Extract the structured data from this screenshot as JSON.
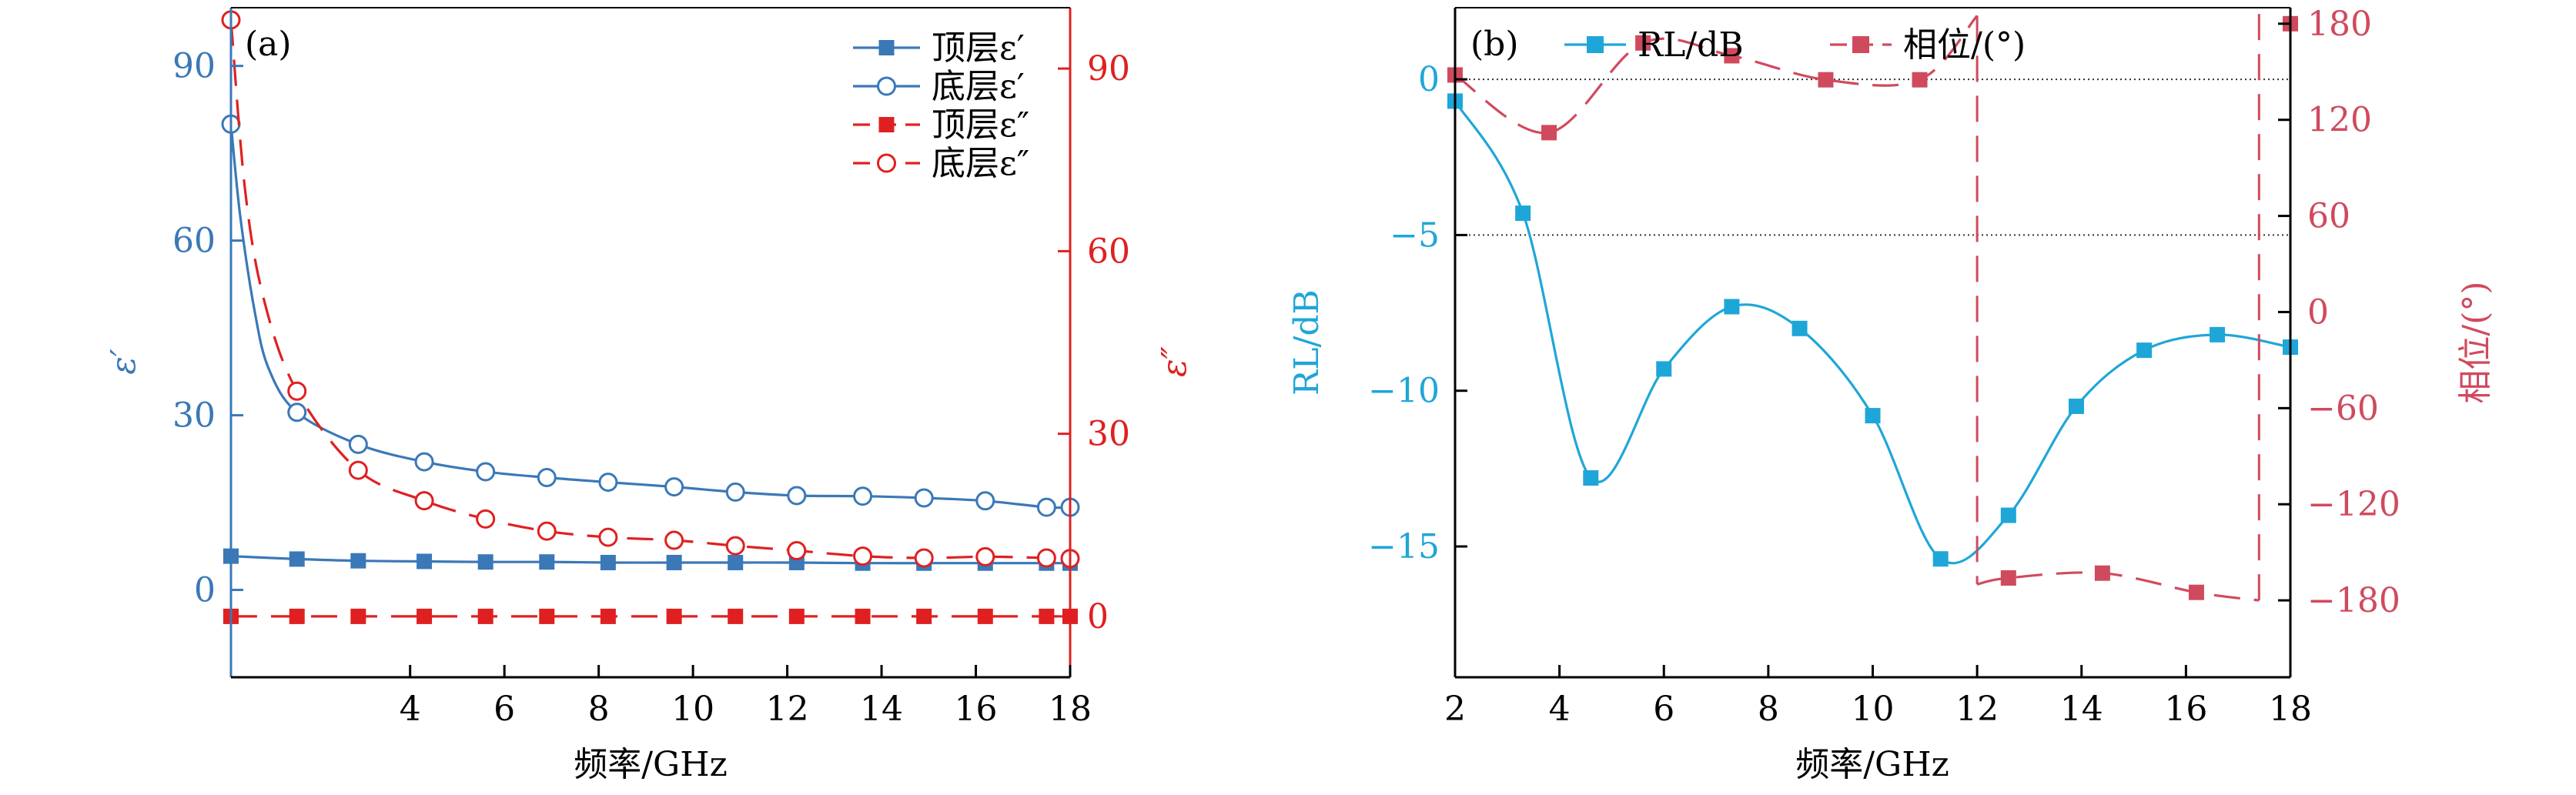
{
  "chart_data": [
    {
      "type": "line",
      "panel_label": "(a)",
      "xlabel": "频率/GHz",
      "ylabel_left": "ε′",
      "ylabel_right": "ε″",
      "xlim": [
        0.2,
        18
      ],
      "ylim_left": [
        -15,
        100
      ],
      "ylim_right": [
        -10,
        100
      ],
      "xticks": [
        4,
        6,
        8,
        10,
        12,
        14,
        16,
        18
      ],
      "yticks_left": [
        0,
        30,
        60,
        90
      ],
      "yticks_right": [
        0,
        30,
        60,
        90
      ],
      "colors": {
        "left_axis": "#3a78b8",
        "right_axis": "#e02020"
      },
      "legend_position": "top-right",
      "series": [
        {
          "name": "顶层ε′",
          "axis": "left",
          "color": "#3a78b8",
          "marker": "square-filled",
          "line": "solid",
          "x": [
            0.2,
            1.6,
            2.9,
            4.3,
            5.6,
            6.9,
            8.2,
            9.6,
            10.9,
            12.2,
            13.6,
            14.9,
            16.2,
            17.5,
            18.0
          ],
          "y": [
            5.8,
            5.3,
            5.0,
            4.9,
            4.8,
            4.8,
            4.7,
            4.7,
            4.7,
            4.7,
            4.6,
            4.6,
            4.6,
            4.6,
            4.6
          ]
        },
        {
          "name": "底层ε′",
          "axis": "left",
          "color": "#3a78b8",
          "marker": "circle-open",
          "line": "solid",
          "x": [
            0.2,
            0.4,
            0.7,
            1.0,
            1.6,
            2.9,
            4.3,
            5.6,
            6.9,
            8.2,
            9.6,
            10.9,
            12.2,
            13.6,
            14.9,
            16.2,
            17.5,
            18.0
          ],
          "y": [
            80,
            64,
            48,
            38,
            30.5,
            25,
            22,
            20.3,
            19.3,
            18.5,
            17.7,
            16.8,
            16.2,
            16.1,
            15.8,
            15.3,
            14.2,
            14.2
          ]
        },
        {
          "name": "顶层ε″",
          "axis": "right",
          "color": "#e02020",
          "marker": "square-filled",
          "line": "dashed",
          "x": [
            0.2,
            1.6,
            2.9,
            4.3,
            5.6,
            6.9,
            8.2,
            9.6,
            10.9,
            12.2,
            13.6,
            14.9,
            16.2,
            17.5,
            18.0
          ],
          "y": [
            0,
            0,
            0,
            0,
            0,
            0,
            0,
            0,
            0,
            0,
            0,
            0,
            0,
            0,
            0
          ]
        },
        {
          "name": "底层ε″",
          "axis": "right",
          "color": "#e02020",
          "marker": "circle-open",
          "line": "dashed",
          "x": [
            0.2,
            0.5,
            0.9,
            1.6,
            2.9,
            4.3,
            5.6,
            6.9,
            8.2,
            9.6,
            10.9,
            12.2,
            13.6,
            14.9,
            16.2,
            17.5,
            18.0
          ],
          "y": [
            98,
            70,
            52,
            37,
            24,
            19,
            16,
            14,
            13,
            12.5,
            11.6,
            10.8,
            9.9,
            9.6,
            9.8,
            9.6,
            9.5
          ]
        }
      ]
    },
    {
      "type": "line",
      "panel_label": "(b)",
      "xlabel": "频率/GHz",
      "ylabel_left": "RL/dB",
      "ylabel_right": "相位/(°)",
      "xlim": [
        2,
        18
      ],
      "ylim_left": [
        -19.2,
        2.3
      ],
      "ylim_right": [
        -228,
        190
      ],
      "xticks": [
        2,
        4,
        6,
        8,
        10,
        12,
        14,
        16,
        18
      ],
      "yticks_left": [
        0,
        -5,
        -10,
        -15
      ],
      "yticks_left_labels": [
        "0",
        "−5",
        "−10",
        "−15"
      ],
      "yticks_right": [
        180,
        120,
        60,
        0,
        -60,
        -120,
        -180
      ],
      "yticks_right_labels": [
        "180",
        "120",
        "60",
        "0",
        "−60",
        "−120",
        "−180"
      ],
      "reference_lines": [
        0,
        -5
      ],
      "colors": {
        "left_axis": "#1fa6d8",
        "right_axis": "#d04a5e"
      },
      "legend_position": "top-left",
      "series": [
        {
          "name": "RL/dB",
          "axis": "left",
          "color": "#1fa6d8",
          "marker": "square-filled",
          "line": "solid",
          "x": [
            2.0,
            3.3,
            4.6,
            6.0,
            7.3,
            8.6,
            10.0,
            11.3,
            12.6,
            13.9,
            15.2,
            16.6,
            18.0
          ],
          "y": [
            -0.7,
            -4.3,
            -12.8,
            -9.3,
            -7.3,
            -8.0,
            -10.8,
            -15.4,
            -14.0,
            -10.5,
            -8.7,
            -8.2,
            -8.6
          ]
        },
        {
          "name": "相位/(°)",
          "axis": "right",
          "color": "#d04a5e",
          "marker": "square-filled",
          "line": "dashed",
          "x": [
            2.0,
            3.8,
            5.6,
            7.3,
            9.1,
            10.9,
            12.6,
            14.4,
            16.2,
            18.0
          ],
          "y": [
            148,
            112,
            168,
            160,
            145,
            145,
            -166,
            -163,
            -175,
            180
          ]
        }
      ]
    }
  ]
}
